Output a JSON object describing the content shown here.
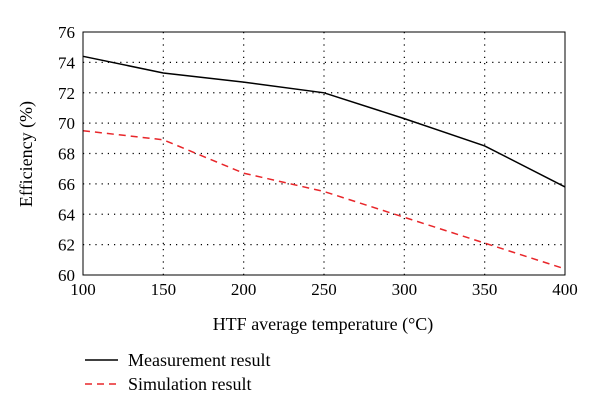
{
  "chart_data": {
    "type": "line",
    "xlabel": "HTF average temperature (°C)",
    "ylabel": "Efficiency (%)",
    "xlim": [
      100,
      400
    ],
    "ylim": [
      60,
      76
    ],
    "x_ticks": [
      100,
      150,
      200,
      250,
      300,
      350,
      400
    ],
    "y_ticks": [
      60,
      62,
      64,
      66,
      68,
      70,
      72,
      74,
      76
    ],
    "grid": "dotted",
    "legend_position": "below",
    "x": [
      100,
      150,
      200,
      250,
      300,
      350,
      400
    ],
    "series": [
      {
        "name": "Measurement result",
        "values": [
          74.4,
          73.3,
          72.7,
          72.0,
          70.3,
          68.5,
          65.8
        ],
        "color": "#000000",
        "dash": "solid"
      },
      {
        "name": "Simulation result",
        "values": [
          69.5,
          68.9,
          66.7,
          65.5,
          63.8,
          62.1,
          60.4
        ],
        "color": "#e8262a",
        "dash": "dashed"
      }
    ]
  }
}
